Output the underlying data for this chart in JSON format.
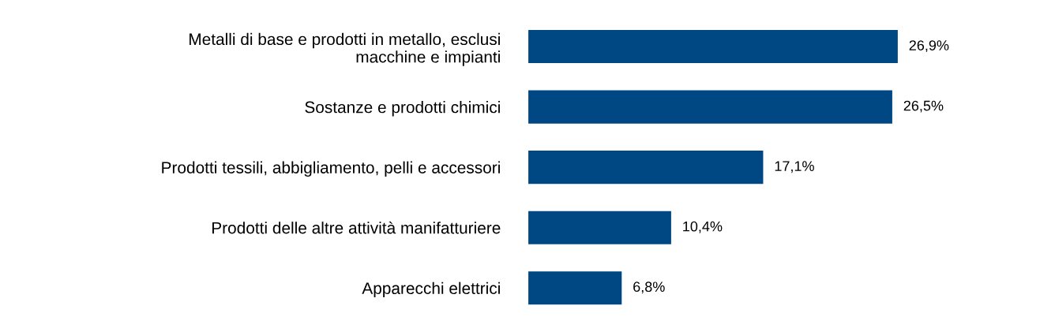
{
  "chart_data": {
    "type": "bar",
    "orientation": "horizontal",
    "categories": [
      "Metalli di base e prodotti in metallo, esclusi\nmacchine e impianti",
      "Sostanze e prodotti chimici",
      "Prodotti tessili, abbigliamento, pelli e accessori",
      "Prodotti delle altre attività manifatturiere",
      "Apparecchi elettrici"
    ],
    "values": [
      26.9,
      26.5,
      17.1,
      10.4,
      6.8
    ],
    "value_labels": [
      "26,9%",
      "26,5%",
      "17,1%",
      "10,4%",
      "6,8%"
    ],
    "color": "#004883",
    "tick_labels": "y",
    "legend": false
  }
}
